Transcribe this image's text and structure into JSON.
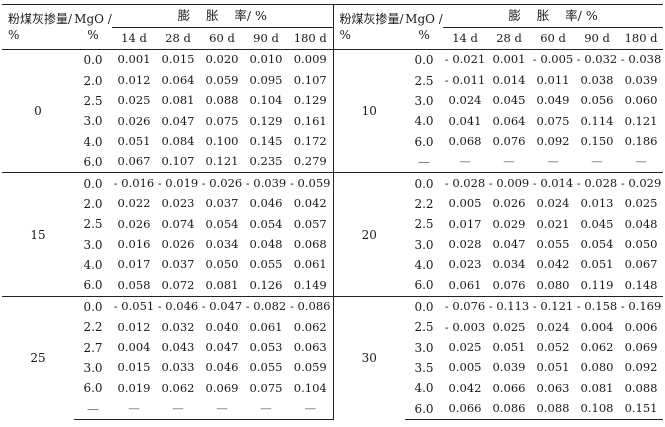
{
  "header": {
    "fly_ash_label": "粉煤灰掺量/ %",
    "mgo_label": "MgO / %",
    "span_title": "膨    胀    率/ %",
    "ages": [
      "14 d",
      "28 d",
      "60 d",
      "90 d",
      "180 d"
    ]
  },
  "left_groups": [
    {
      "fly_ash": "0",
      "rows": [
        {
          "mgo": "0.0",
          "v": [
            "0.001",
            "0.015",
            "0.020",
            "0.010",
            "0.009"
          ]
        },
        {
          "mgo": "2.0",
          "v": [
            "0.012",
            "0.064",
            "0.059",
            "0.095",
            "0.107"
          ]
        },
        {
          "mgo": "2.5",
          "v": [
            "0.025",
            "0.081",
            "0.088",
            "0.104",
            "0.129"
          ]
        },
        {
          "mgo": "3.0",
          "v": [
            "0.026",
            "0.047",
            "0.075",
            "0.129",
            "0.161"
          ]
        },
        {
          "mgo": "4.0",
          "v": [
            "0.051",
            "0.084",
            "0.100",
            "0.145",
            "0.172"
          ]
        },
        {
          "mgo": "6.0",
          "v": [
            "0.067",
            "0.107",
            "0.121",
            "0.235",
            "0.279"
          ]
        }
      ]
    },
    {
      "fly_ash": "15",
      "rows": [
        {
          "mgo": "0.0",
          "v": [
            "- 0.016",
            "- 0.019",
            "- 0.026",
            "- 0.039",
            "- 0.059"
          ]
        },
        {
          "mgo": "2.0",
          "v": [
            "0.022",
            "0.023",
            "0.037",
            "0.046",
            "0.042"
          ]
        },
        {
          "mgo": "2.5",
          "v": [
            "0.026",
            "0.074",
            "0.054",
            "0.054",
            "0.057"
          ]
        },
        {
          "mgo": "3.0",
          "v": [
            "0.016",
            "0.026",
            "0.034",
            "0.048",
            "0.068"
          ]
        },
        {
          "mgo": "4.0",
          "v": [
            "0.017",
            "0.037",
            "0.050",
            "0.055",
            "0.061"
          ]
        },
        {
          "mgo": "6.0",
          "v": [
            "0.058",
            "0.072",
            "0.081",
            "0.126",
            "0.149"
          ]
        }
      ]
    },
    {
      "fly_ash": "25",
      "rows": [
        {
          "mgo": "0.0",
          "v": [
            "- 0.051",
            "- 0.046",
            "- 0.047",
            "- 0.082",
            "- 0.086"
          ]
        },
        {
          "mgo": "2.2",
          "v": [
            "0.012",
            "0.032",
            "0.040",
            "0.061",
            "0.062"
          ]
        },
        {
          "mgo": "2.7",
          "v": [
            "0.004",
            "0.043",
            "0.047",
            "0.053",
            "0.063"
          ]
        },
        {
          "mgo": "3.0",
          "v": [
            "0.015",
            "0.033",
            "0.046",
            "0.055",
            "0.059"
          ]
        },
        {
          "mgo": "6.0",
          "v": [
            "0.019",
            "0.062",
            "0.069",
            "0.075",
            "0.104"
          ]
        },
        {
          "mgo": "—",
          "v": [
            "—",
            "—",
            "—",
            "—",
            "—"
          ]
        }
      ]
    }
  ],
  "right_groups": [
    {
      "fly_ash": "10",
      "rows": [
        {
          "mgo": "0.0",
          "v": [
            "- 0.021",
            "0.001",
            "- 0.005",
            "- 0.032",
            "- 0.038"
          ]
        },
        {
          "mgo": "2.5",
          "v": [
            "- 0.011",
            "0.014",
            "0.011",
            "0.038",
            "0.039"
          ]
        },
        {
          "mgo": "3.0",
          "v": [
            "0.024",
            "0.045",
            "0.049",
            "0.056",
            "0.060"
          ]
        },
        {
          "mgo": "4.0",
          "v": [
            "0.041",
            "0.064",
            "0.075",
            "0.114",
            "0.121"
          ]
        },
        {
          "mgo": "6.0",
          "v": [
            "0.068",
            "0.076",
            "0.092",
            "0.150",
            "0.186"
          ]
        },
        {
          "mgo": "—",
          "v": [
            "—",
            "—",
            "—",
            "—",
            "—"
          ]
        }
      ]
    },
    {
      "fly_ash": "20",
      "rows": [
        {
          "mgo": "0.0",
          "v": [
            "- 0.028",
            "- 0.009",
            "- 0.014",
            "- 0.028",
            "- 0.029"
          ]
        },
        {
          "mgo": "2.2",
          "v": [
            "0.005",
            "0.026",
            "0.024",
            "0.013",
            "0.025"
          ]
        },
        {
          "mgo": "2.5",
          "v": [
            "0.017",
            "0.029",
            "0.021",
            "0.045",
            "0.048"
          ]
        },
        {
          "mgo": "3.0",
          "v": [
            "0.028",
            "0.047",
            "0.055",
            "0.054",
            "0.050"
          ]
        },
        {
          "mgo": "4.0",
          "v": [
            "0.023",
            "0.034",
            "0.042",
            "0.051",
            "0.067"
          ]
        },
        {
          "mgo": "6.0",
          "v": [
            "0.061",
            "0.076",
            "0.080",
            "0.119",
            "0.148"
          ]
        }
      ]
    },
    {
      "fly_ash": "30",
      "rows": [
        {
          "mgo": "0.0",
          "v": [
            "- 0.076",
            "- 0.113",
            "- 0.121",
            "- 0.158",
            "- 0.169"
          ]
        },
        {
          "mgo": "2.5",
          "v": [
            "- 0.003",
            "0.025",
            "0.024",
            "0.004",
            "0.006"
          ]
        },
        {
          "mgo": "3.0",
          "v": [
            "0.025",
            "0.051",
            "0.052",
            "0.062",
            "0.069"
          ]
        },
        {
          "mgo": "3.5",
          "v": [
            "0.005",
            "0.039",
            "0.051",
            "0.080",
            "0.092"
          ]
        },
        {
          "mgo": "4.0",
          "v": [
            "0.042",
            "0.066",
            "0.063",
            "0.081",
            "0.088"
          ]
        },
        {
          "mgo": "6.0",
          "v": [
            "0.066",
            "0.086",
            "0.088",
            "0.108",
            "0.151"
          ]
        }
      ]
    }
  ]
}
